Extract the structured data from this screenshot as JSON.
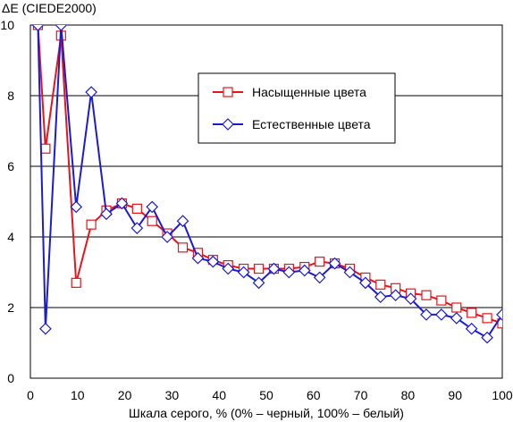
{
  "chart_data": {
    "type": "line",
    "title": "",
    "ylabel": "ΔE (CIEDE2000)",
    "xlabel": "Шкала серого, % (0% – черный, 100% – белый)",
    "xlim": [
      0,
      100
    ],
    "ylim": [
      0,
      10
    ],
    "x_ticks": [
      "0",
      "10",
      "20",
      "30",
      "40",
      "50",
      "60",
      "70",
      "80",
      "90",
      "100"
    ],
    "y_ticks": [
      "0",
      "2",
      "4",
      "6",
      "8",
      "10"
    ],
    "grid": "horizontal",
    "legend_position": "top-right",
    "series": [
      {
        "name": "Насыщенные цвета",
        "color": "#e8141b",
        "marker": "square",
        "x": [
          1.6,
          3.2,
          6.5,
          9.7,
          12.9,
          16.1,
          19.4,
          22.6,
          25.8,
          29.0,
          32.3,
          35.5,
          38.7,
          41.9,
          45.2,
          48.4,
          51.6,
          54.8,
          58.1,
          61.3,
          64.5,
          67.7,
          71.0,
          74.2,
          77.4,
          80.6,
          83.9,
          87.1,
          90.3,
          93.5,
          96.8,
          100
        ],
        "y": [
          10.0,
          6.5,
          9.7,
          2.7,
          4.35,
          4.75,
          4.95,
          4.8,
          4.45,
          4.1,
          3.7,
          3.55,
          3.35,
          3.2,
          3.1,
          3.1,
          3.1,
          3.1,
          3.15,
          3.3,
          3.25,
          3.1,
          2.85,
          2.65,
          2.55,
          2.4,
          2.35,
          2.2,
          2.0,
          1.85,
          1.7,
          1.55
        ]
      },
      {
        "name": "Естественные цвета",
        "color": "#1b1bd6",
        "marker": "diamond",
        "x": [
          1.6,
          3.2,
          6.5,
          9.7,
          12.9,
          16.1,
          19.4,
          22.6,
          25.8,
          29.0,
          32.3,
          35.5,
          38.7,
          41.9,
          45.2,
          48.4,
          51.6,
          54.8,
          58.1,
          61.3,
          64.5,
          67.7,
          71.0,
          74.2,
          77.4,
          80.6,
          83.9,
          87.1,
          90.3,
          93.5,
          96.8,
          100
        ],
        "y": [
          10.0,
          1.4,
          10.0,
          4.85,
          8.1,
          4.65,
          4.95,
          4.25,
          4.85,
          4.0,
          4.45,
          3.4,
          3.3,
          3.1,
          3.0,
          2.7,
          3.1,
          3.0,
          3.05,
          2.85,
          3.25,
          3.0,
          2.7,
          2.3,
          2.35,
          2.25,
          1.8,
          1.8,
          1.7,
          1.4,
          1.15,
          1.8
        ]
      }
    ]
  }
}
